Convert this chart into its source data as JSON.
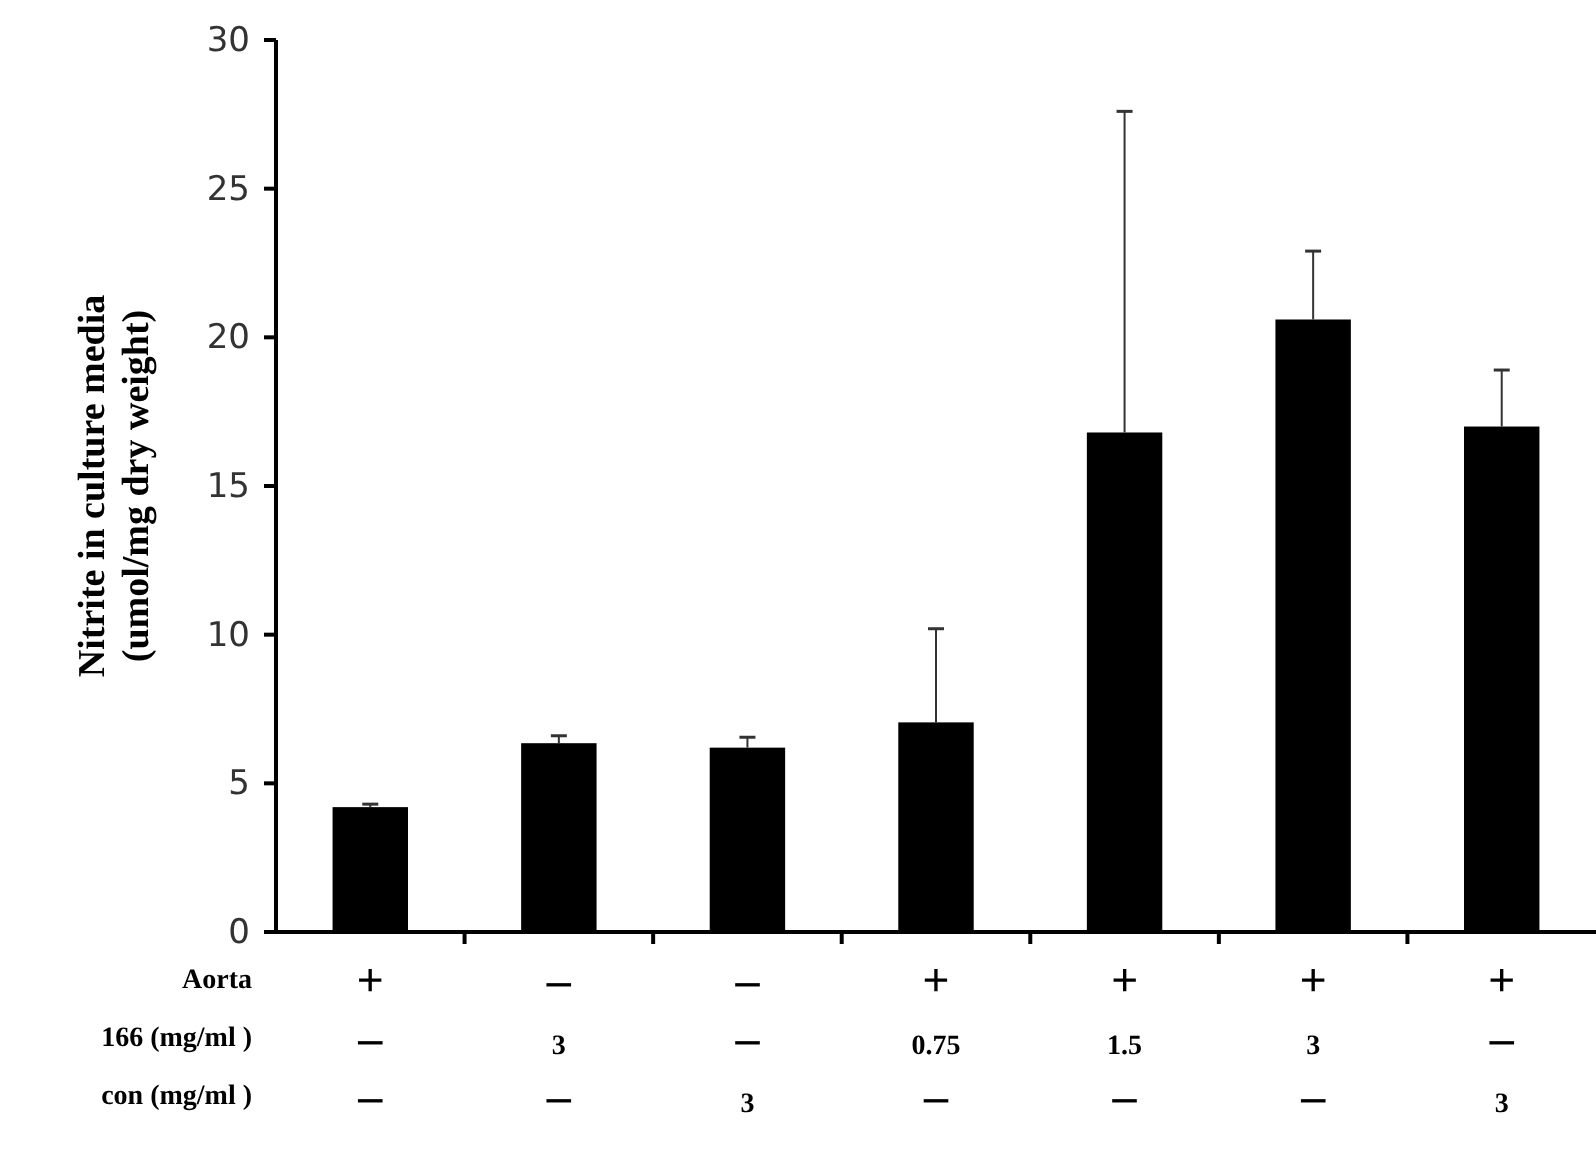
{
  "chart_data": {
    "type": "bar",
    "ylabel": "Nitrite in culture media\n(umol/mg dry weight)",
    "categories": [
      "+\n–\n–",
      "–\n3\n–",
      "–\n–\n3",
      "+\n0.75\n–",
      "+\n1.5\n–",
      "+\n3\n–",
      "+\n–\n3"
    ],
    "values": [
      4.2,
      6.35,
      6.2,
      7.05,
      16.8,
      20.6,
      17.0
    ],
    "errors": [
      [
        4.2,
        4.3
      ],
      [
        6.35,
        6.6
      ],
      [
        6.2,
        6.55
      ],
      [
        7.05,
        10.2
      ],
      [
        16.8,
        27.6
      ],
      [
        20.6,
        22.9
      ],
      [
        17.0,
        18.9
      ]
    ],
    "color": "#000000",
    "ylim": [
      0,
      30
    ],
    "yticks": [
      0,
      5,
      10,
      15,
      20,
      25,
      30
    ],
    "grid": false,
    "annotations": [
      "Aorta",
      "166 (mg/ml )",
      "con (mg/ml )"
    ]
  }
}
